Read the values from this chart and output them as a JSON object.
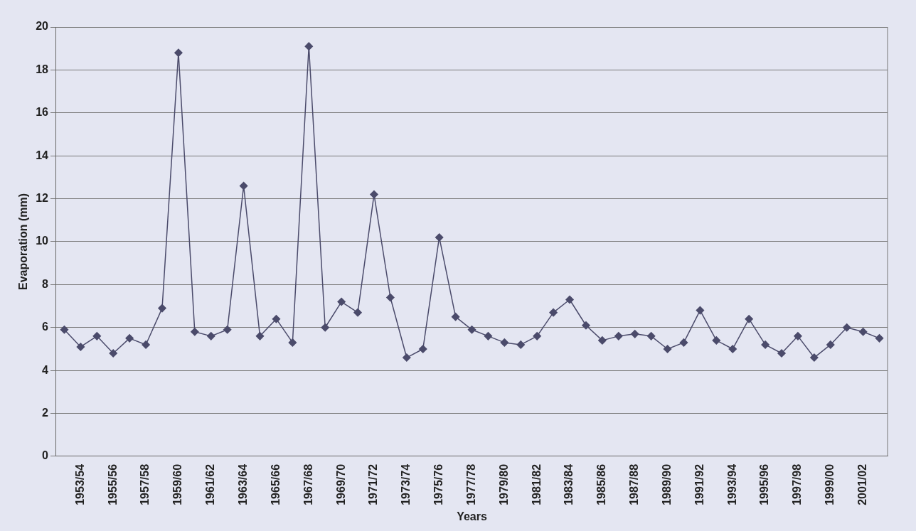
{
  "chart_data": {
    "type": "line",
    "xlabel": "Years",
    "ylabel": "Evaporation (mm)",
    "categories": [
      null,
      "1953/54",
      null,
      "1955/56",
      null,
      "1957/58",
      null,
      "1959/60",
      null,
      "1961/62",
      null,
      "1963/64",
      null,
      "1965/66",
      null,
      "1967/68",
      null,
      "1969/70",
      null,
      "1971/72",
      null,
      "1973/74",
      null,
      "1975/76",
      null,
      "1977/78",
      null,
      "1979/80",
      null,
      "1981/82",
      null,
      "1983/84",
      null,
      "1985/86",
      null,
      "1987/88",
      null,
      "1989/90",
      null,
      "1991/92",
      null,
      "1993/94",
      null,
      "1995/96",
      null,
      "1997/98",
      null,
      "1999/00",
      null,
      "2001/02",
      null
    ],
    "series": [
      {
        "color": "#4b4b6b",
        "values": [
          5.9,
          5.1,
          5.6,
          4.8,
          5.5,
          5.2,
          6.9,
          18.8,
          5.8,
          5.6,
          5.9,
          12.6,
          5.6,
          6.4,
          5.3,
          19.1,
          6.0,
          7.2,
          6.7,
          12.2,
          7.4,
          4.6,
          5.0,
          10.2,
          6.5,
          5.9,
          5.6,
          5.3,
          5.2,
          5.6,
          6.7,
          7.3,
          6.1,
          5.4,
          5.6,
          5.7,
          5.6,
          5.0,
          5.3,
          6.8,
          5.4,
          5.0,
          6.4,
          5.2,
          4.8,
          5.6,
          4.6,
          5.2,
          6.0,
          5.8,
          5.5
        ]
      }
    ],
    "ylim": [
      0,
      20
    ],
    "yticks": [
      0,
      2,
      4,
      6,
      8,
      10,
      12,
      14,
      16,
      18,
      20
    ],
    "grid": "y",
    "legend": false,
    "marker": "diamond",
    "line_style": "solid"
  }
}
